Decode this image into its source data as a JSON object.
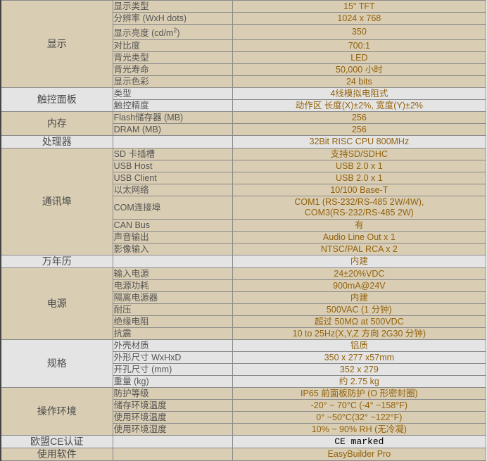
{
  "colors": {
    "tan": "#d9cdb3",
    "gray": "#e4e4e4",
    "value_text": "#93620c",
    "label_text": "#555555"
  },
  "groups": [
    {
      "category": "显示",
      "rows": [
        {
          "param": "显示类型",
          "value": "15\" TFT"
        },
        {
          "param": "分辨率 (WxH dots)",
          "value": "1024 x 768"
        },
        {
          "param": "显示亮度 (cd/m",
          "param_sup": "2",
          "param_tail": ")",
          "value": "350"
        },
        {
          "param": "对比度",
          "value": "700:1"
        },
        {
          "param": "背光类型",
          "value": "LED"
        },
        {
          "param": "背光寿命",
          "value": "50,000 小时"
        },
        {
          "param": "显示色彩",
          "value": "24 bits"
        }
      ]
    },
    {
      "category": "触控面板",
      "rows": [
        {
          "param": "类型",
          "value": "4线模拟电阻式"
        },
        {
          "param": "触控精度",
          "value": "动作区 长度(X)±2%, 宽度(Y)±2%"
        }
      ]
    },
    {
      "category": "内存",
      "rows": [
        {
          "param": "Flash储存器 (MB)",
          "value": "256"
        },
        {
          "param": "DRAM (MB)",
          "value": "256"
        }
      ]
    },
    {
      "category": "处理器",
      "rows": [
        {
          "param": "",
          "value": "32Bit RISC CPU 800MHz"
        }
      ]
    },
    {
      "category": "通讯埠",
      "rows": [
        {
          "param": "SD 卡插槽",
          "value": "支持SD/SDHC"
        },
        {
          "param": "USB Host",
          "value": "USB 2.0 x 1"
        },
        {
          "param": "USB Client",
          "value": "USB 2.0 x 1"
        },
        {
          "param": "以太网络",
          "value": "10/100 Base-T"
        },
        {
          "param": "COM连接埠",
          "value": "COM1 (RS-232/RS-485 2W/4W),",
          "value2": "COM3(RS-232/RS-485 2W)"
        },
        {
          "param": "CAN Bus",
          "value": "有"
        },
        {
          "param": "声音输出",
          "value": "Audio Line Out x 1"
        },
        {
          "param": "影像输入",
          "value": "NTSC/PAL RCA x 2"
        }
      ]
    },
    {
      "category": "万年历",
      "rows": [
        {
          "param": "",
          "value": "内建"
        }
      ]
    },
    {
      "category": "电源",
      "rows": [
        {
          "param": "输入电源",
          "value": "24±20%VDC"
        },
        {
          "param": "电源功耗",
          "value": "900mA@24V"
        },
        {
          "param": "隔离电源器",
          "value": "内建"
        },
        {
          "param": "耐压",
          "value": "500VAC (1 分钟)"
        },
        {
          "param": "绝缘电阻",
          "value": "超过 50MΩ at 500VDC"
        },
        {
          "param": "抗震",
          "value": "10 to 25Hz(X,Y,Z 方向 2G30 分钟)"
        }
      ]
    },
    {
      "category": "规格",
      "rows": [
        {
          "param": "外壳材质",
          "value": "铝质"
        },
        {
          "param": "外形尺寸 WxHxD",
          "value": "350 x 277 x57mm"
        },
        {
          "param": "开孔尺寸 (mm)",
          "value": "352 x 279"
        },
        {
          "param": "重量 (kg)",
          "value": "约 2.75 kg"
        }
      ]
    },
    {
      "category": "操作环境",
      "rows": [
        {
          "param": "防护等级",
          "value": "IP65 前面板防护 (O 形密封圈)"
        },
        {
          "param": "储存环境温度",
          "value": "-20° ~ 70°C (-4° ~158°F)"
        },
        {
          "param": "使用环境温度",
          "value": "0° ~50°C(32° ~122°F)"
        },
        {
          "param": "使用环境湿度",
          "value": "10% ~ 90% RH (无冷凝)"
        }
      ]
    },
    {
      "category": "欧盟CE认证",
      "rows": [
        {
          "param": "",
          "value": "CE marked"
        }
      ]
    },
    {
      "category": "使用软件",
      "rows": [
        {
          "param": "",
          "value": "EasyBuilder Pro"
        }
      ]
    }
  ]
}
